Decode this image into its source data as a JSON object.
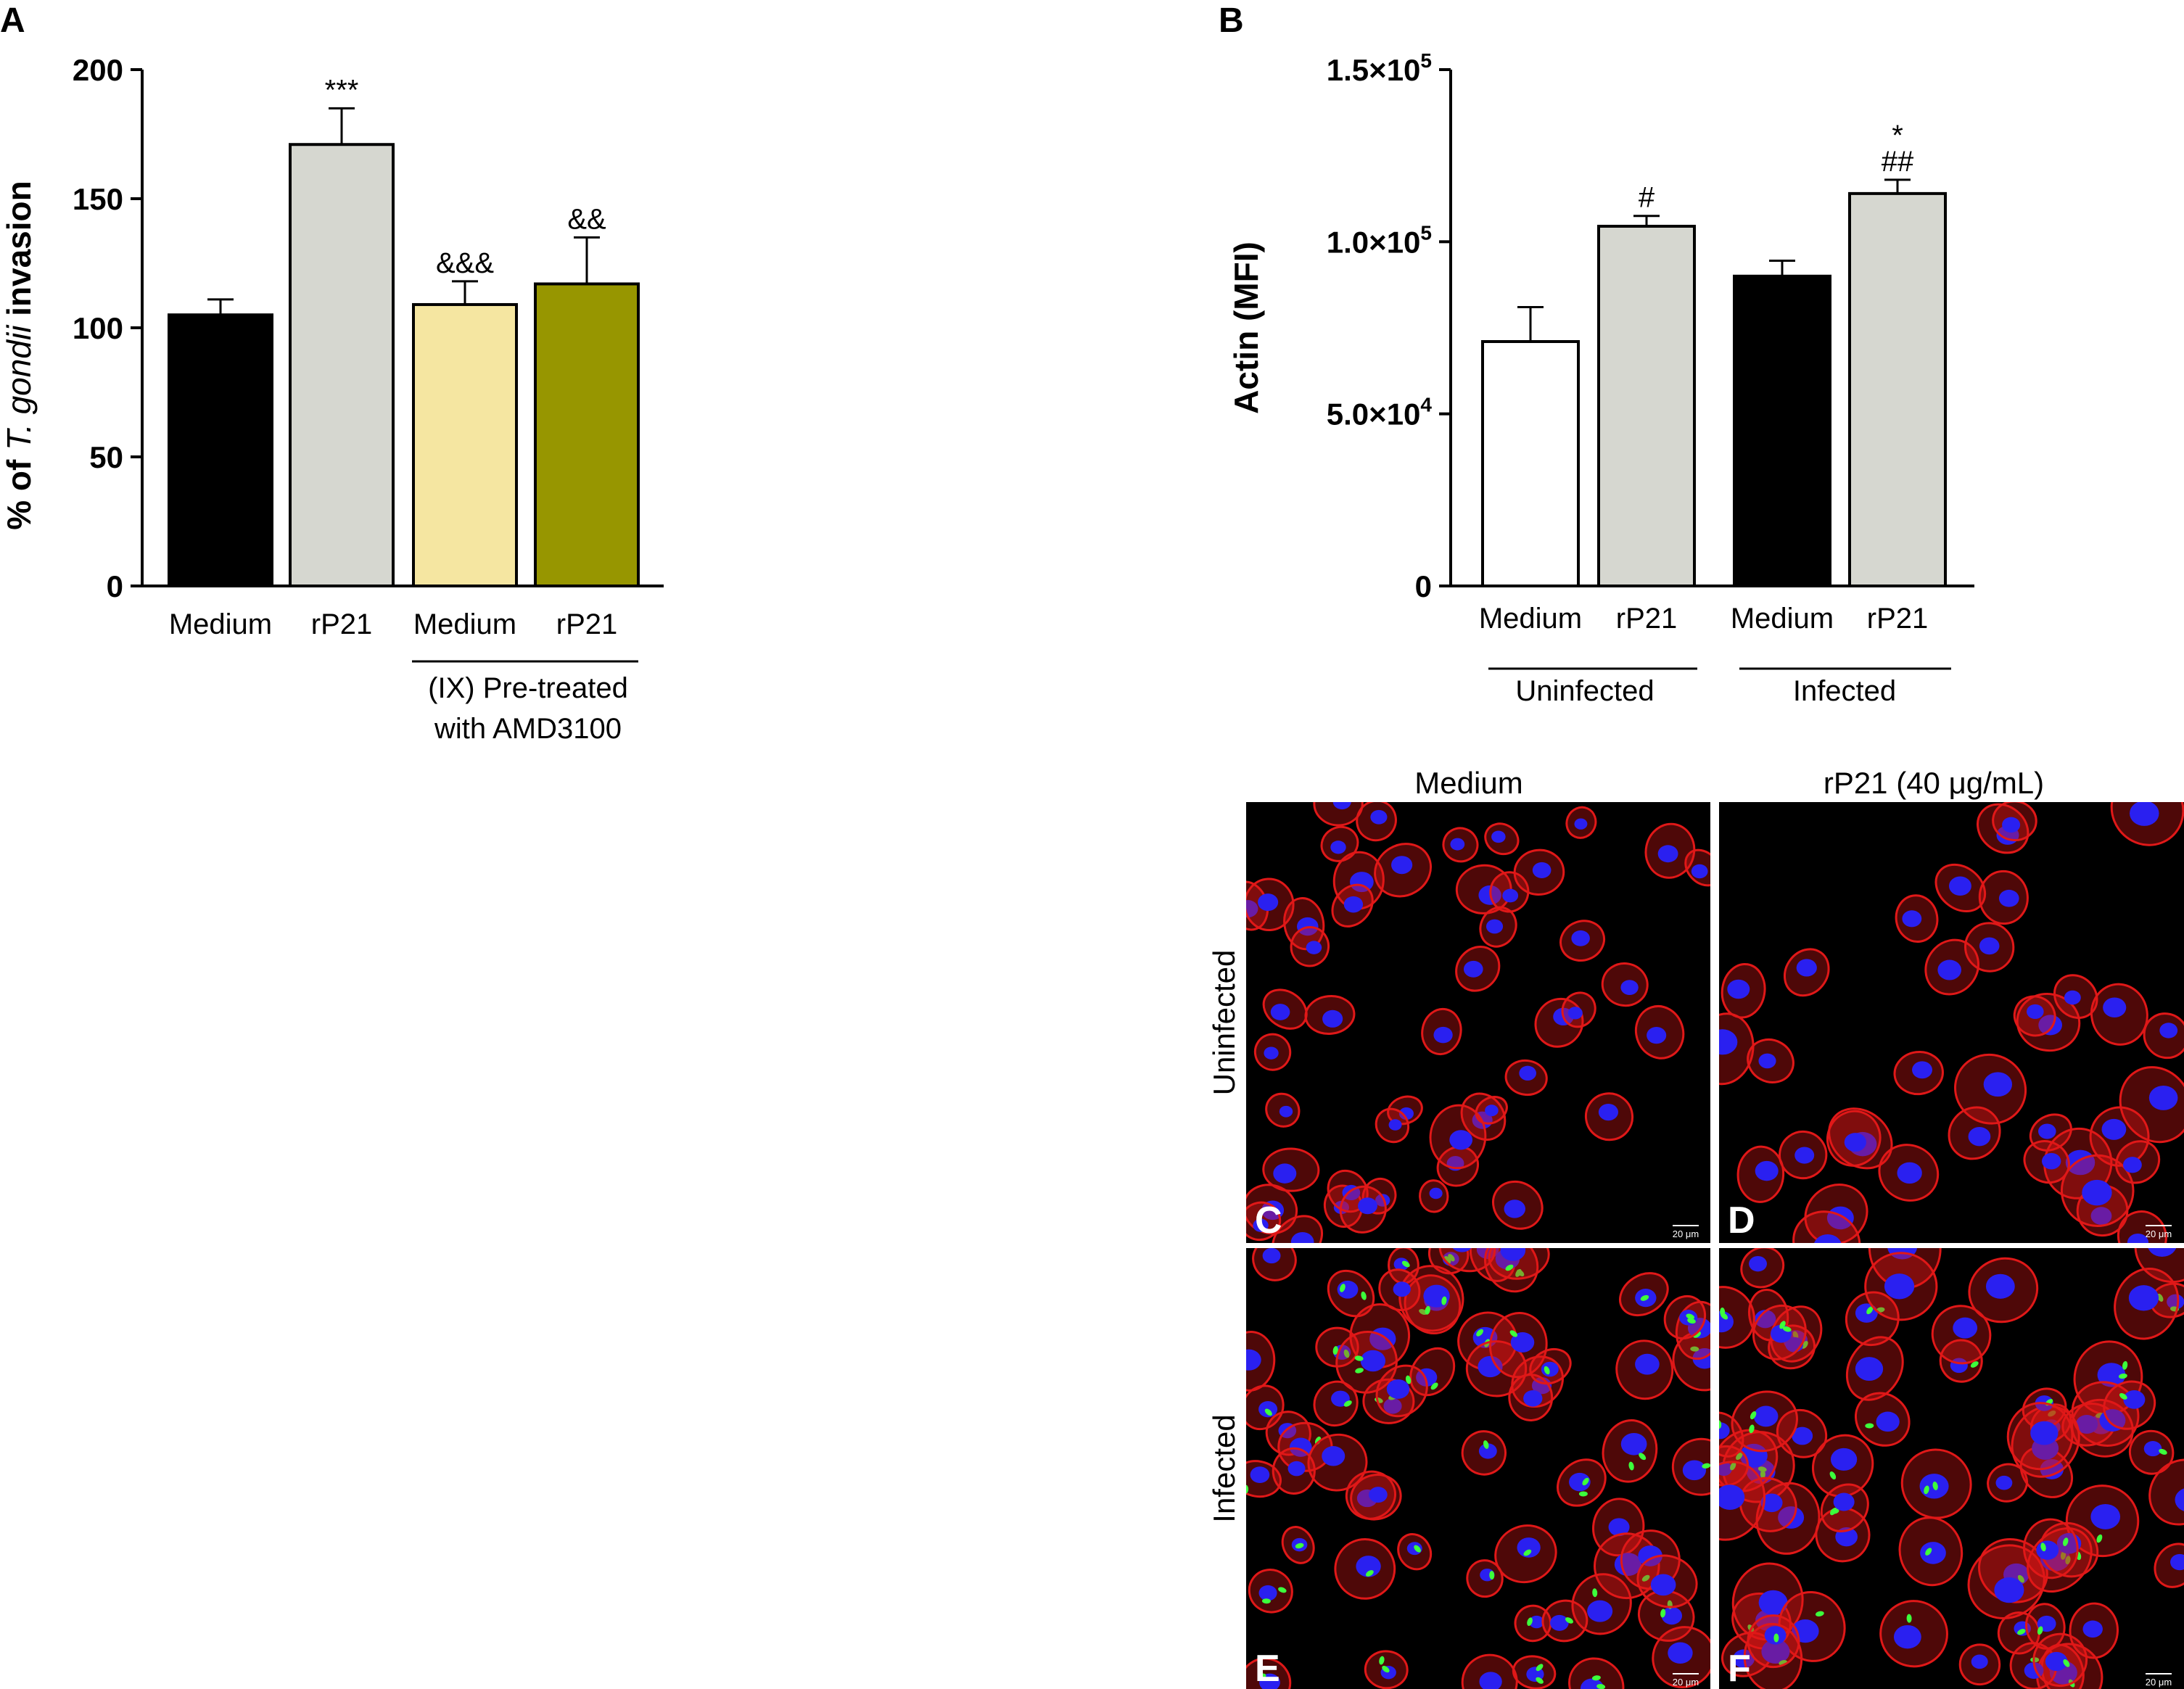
{
  "figure": {
    "micrographs": {
      "column_labels": [
        "Medium",
        "rP21 (40 μg/mL)"
      ],
      "row_labels": [
        "Uninfected",
        "Infected"
      ],
      "panels": [
        {
          "letter": "C",
          "row": 0,
          "col": 0,
          "scale_bar": "20 μm"
        },
        {
          "letter": "D",
          "row": 0,
          "col": 1,
          "scale_bar": "20 μm"
        },
        {
          "letter": "E",
          "row": 1,
          "col": 0,
          "scale_bar": "20 μm"
        },
        {
          "letter": "F",
          "row": 1,
          "col": 1,
          "scale_bar": "20 μm"
        }
      ],
      "colors": {
        "background": "#000000",
        "actin": "#e01818",
        "nuclei": "#2a20f0",
        "parasites": "#3cff3c"
      }
    }
  },
  "chart_data": [
    {
      "panel_letter": "A",
      "type": "bar",
      "ylabel_parts": [
        "% of ",
        "T. gondii",
        " invasion"
      ],
      "ylim": [
        0,
        200
      ],
      "yticks": [
        "0",
        "50",
        "100",
        "150",
        "200"
      ],
      "categories": [
        "Medium",
        "rP21",
        "Medium",
        "rP21"
      ],
      "values": [
        105,
        171,
        109,
        117
      ],
      "errors": [
        6,
        14,
        9,
        18
      ],
      "annotations": [
        "",
        "***",
        "&&&",
        "&&"
      ],
      "bar_colors": [
        "#000000",
        "#d6d7d0",
        "#f5e6a1",
        "#979600"
      ],
      "group_label_lines": [
        "(IX) Pre-treated",
        "with AMD3100"
      ],
      "grid": false
    },
    {
      "panel_letter": "B",
      "type": "bar",
      "ylabel": "Actin (MFI)",
      "ylim": [
        0,
        150000
      ],
      "yticks": [
        {
          "base": "0",
          "exp": ""
        },
        {
          "base": "5.0×10",
          "exp": "4"
        },
        {
          "base": "1.0×10",
          "exp": "5"
        },
        {
          "base": "1.5×10",
          "exp": "5"
        }
      ],
      "categories": [
        "Medium",
        "rP21",
        "Medium",
        "rP21"
      ],
      "values": [
        71000,
        104500,
        90000,
        114000
      ],
      "errors": [
        10000,
        3000,
        4500,
        4000
      ],
      "annotations": [
        [
          ""
        ],
        [
          "#"
        ],
        [
          ""
        ],
        [
          "*",
          "##"
        ]
      ],
      "bar_colors": [
        "#ffffff",
        "#d6d7d0",
        "#000000",
        "#d6d7d0"
      ],
      "groups": [
        "Uninfected",
        "Infected"
      ],
      "grid": false
    }
  ]
}
